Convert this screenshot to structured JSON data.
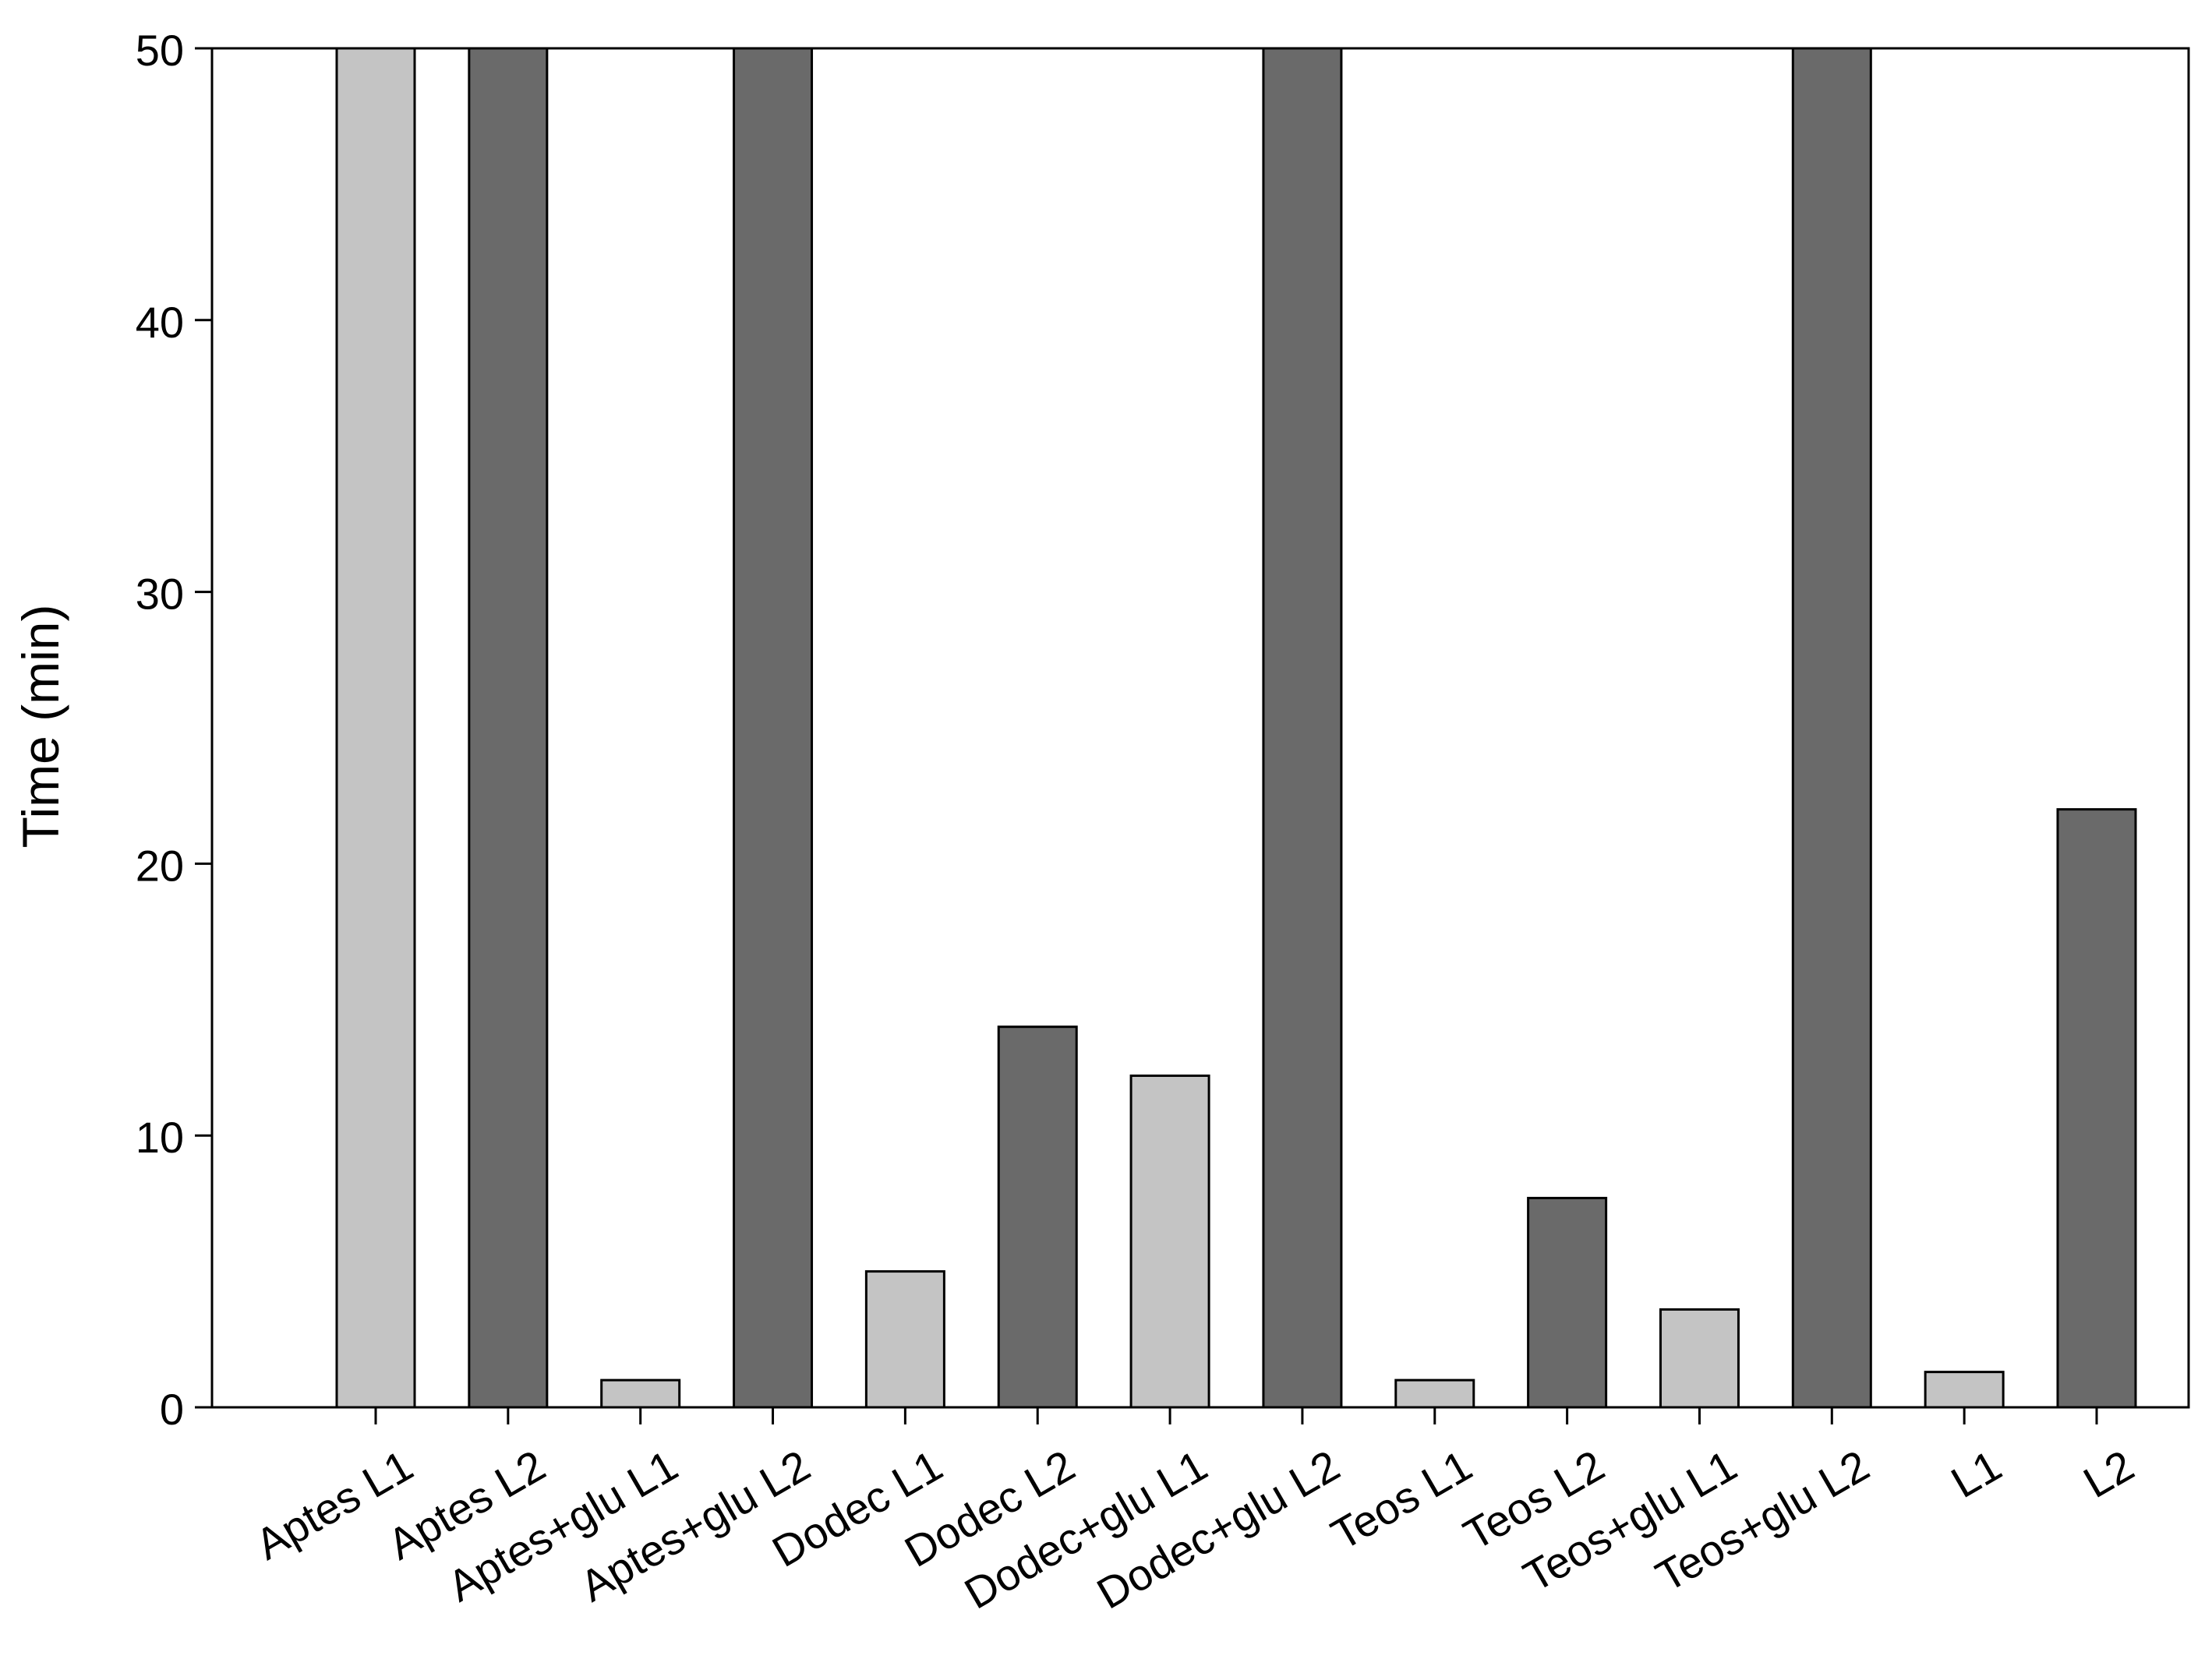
{
  "chart_data": {
    "type": "bar",
    "title": "",
    "xlabel": "",
    "ylabel": "Time (min)",
    "ylim": [
      0,
      50
    ],
    "yticks": [
      0,
      10,
      20,
      30,
      40,
      50
    ],
    "grid": false,
    "categories": [
      "Aptes L1",
      "Aptes L2",
      "Aptes+glu L1",
      "Aptes+glu L2",
      "Dodec L1",
      "Dodec L2",
      "Dodec+glu L1",
      "Dodec+glu L2",
      "Teos L1",
      "Teos L2",
      "Teos+glu L1",
      "Teos+glu L2",
      "L1",
      "L2"
    ],
    "values": [
      50,
      50,
      1,
      50,
      5,
      14,
      12.2,
      50,
      1,
      7.7,
      3.6,
      50,
      1.3,
      22
    ],
    "bar_colors": [
      "#c4c4c4",
      "#6a6a6a",
      "#c4c4c4",
      "#6a6a6a",
      "#c4c4c4",
      "#6a6a6a",
      "#c4c4c4",
      "#6a6a6a",
      "#c4c4c4",
      "#6a6a6a",
      "#c4c4c4",
      "#6a6a6a",
      "#c4c4c4",
      "#6a6a6a"
    ]
  }
}
